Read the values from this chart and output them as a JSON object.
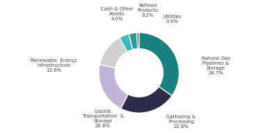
{
  "slices": [
    {
      "label": "Natural Gas\nPipelines &\nStorage",
      "pct": "34.7%",
      "value": 34.7,
      "color": "#1b8080"
    },
    {
      "label": "Gathering &\nProcessing",
      "pct": "22.8%",
      "value": 22.8,
      "color": "#2d2d4a"
    },
    {
      "label": "Liquids\nTransportation  &\nStorage",
      "pct": "20.8%",
      "value": 20.8,
      "color": "#c0b4d8"
    },
    {
      "label": "Renewable  Energy\nInfrastructure",
      "pct": "13.6%",
      "value": 13.6,
      "color": "#d0d0d0"
    },
    {
      "label": "Cash & Other\nAssets",
      "pct": "4.0%",
      "value": 4.0,
      "color": "#3ababa"
    },
    {
      "label": "Refined\nProducts",
      "pct": "3.2%",
      "value": 3.2,
      "color": "#2a9898"
    },
    {
      "label": "Utilities",
      "pct": "0.9%",
      "value": 0.9,
      "color": "#1a6878"
    }
  ],
  "startangle": 90,
  "background_color": "#ffffff",
  "wedge_edge_color": "#ffffff",
  "wedge_linewidth": 1.0,
  "label_fontsize": 5.0,
  "label_color": "#444444",
  "donut_width": 0.4
}
